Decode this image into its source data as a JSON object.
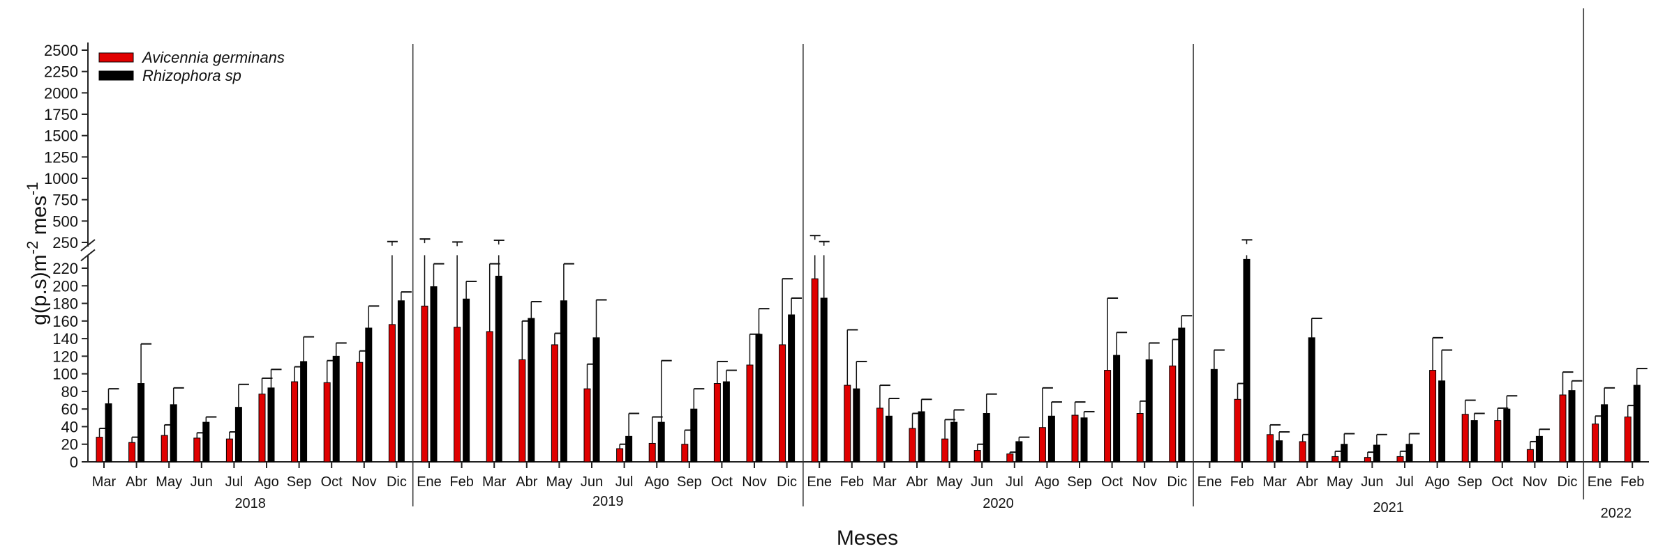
{
  "chart_data": {
    "type": "bar",
    "title": "",
    "xlabel": "Meses",
    "ylabel": "g(p.s)m-2 mes-1",
    "ylabel_parts": {
      "base": "g(p.s)m",
      "exp1": "-2",
      "mid": " mes",
      "exp2": "-1"
    },
    "y_axis_break": {
      "lower_range": [
        0,
        230
      ],
      "upper_range": [
        250,
        2500
      ]
    },
    "y_ticks_lower": [
      0,
      20,
      40,
      60,
      80,
      100,
      120,
      140,
      160,
      180,
      200,
      220
    ],
    "y_ticks_upper": [
      250,
      500,
      750,
      1000,
      1250,
      1500,
      1750,
      2000,
      2250,
      2500
    ],
    "legend_position": "top-left",
    "years": [
      {
        "label": "2018",
        "months": [
          "Mar",
          "Abr",
          "May",
          "Jun",
          "Jul",
          "Ago",
          "Sep",
          "Oct",
          "Nov",
          "Dic"
        ]
      },
      {
        "label": "2019",
        "months": [
          "Ene",
          "Feb",
          "Mar",
          "Abr",
          "May",
          "Jun",
          "Jul",
          "Ago",
          "Sep",
          "Oct",
          "Nov",
          "Dic"
        ]
      },
      {
        "label": "2020",
        "months": [
          "Ene",
          "Feb",
          "Mar",
          "Abr",
          "May",
          "Jun",
          "Jul",
          "Ago",
          "Sep",
          "Oct",
          "Nov",
          "Dic"
        ]
      },
      {
        "label": "2021",
        "months": [
          "Ene",
          "Feb",
          "Mar",
          "Abr",
          "May",
          "Jun",
          "Jul",
          "Ago",
          "Sep",
          "Oct",
          "Nov",
          "Dic"
        ]
      },
      {
        "label": "2022",
        "months": [
          "Ene",
          "Feb"
        ]
      }
    ],
    "series": [
      {
        "name": "Avicennia germinans",
        "color": "#e00000",
        "values": [
          28,
          22,
          30,
          27,
          26,
          77,
          91,
          90,
          113,
          156,
          177,
          153,
          148,
          116,
          133,
          83,
          15,
          21,
          20,
          89,
          110,
          133,
          208,
          87,
          61,
          38,
          26,
          13,
          9,
          39,
          53,
          104,
          55,
          109,
          0,
          71,
          31,
          23,
          6,
          5,
          6,
          104,
          54,
          47,
          14,
          76,
          43,
          51
        ],
        "error_upper": [
          38,
          28,
          42,
          33,
          34,
          95,
          108,
          115,
          126,
          260,
          290,
          255,
          225,
          160,
          146,
          111,
          20,
          51,
          36,
          114,
          145,
          208,
          330,
          150,
          87,
          55,
          48,
          20,
          11,
          84,
          68,
          186,
          69,
          139,
          0,
          89,
          42,
          31,
          12,
          11,
          12,
          141,
          70,
          61,
          23,
          102,
          52,
          64
        ]
      },
      {
        "name": "Rhizophora sp",
        "color": "#000000",
        "values": [
          66,
          89,
          65,
          45,
          62,
          84,
          114,
          120,
          152,
          183,
          199,
          185,
          211,
          163,
          183,
          141,
          29,
          45,
          60,
          91,
          145,
          167,
          186,
          83,
          52,
          57,
          45,
          55,
          23,
          52,
          50,
          121,
          116,
          152,
          105,
          230,
          24,
          141,
          20,
          19,
          20,
          92,
          47,
          60,
          29,
          81,
          65,
          87
        ],
        "error_upper": [
          83,
          134,
          84,
          51,
          88,
          105,
          142,
          135,
          177,
          193,
          225,
          205,
          275,
          182,
          225,
          184,
          55,
          115,
          83,
          104,
          174,
          186,
          260,
          114,
          72,
          71,
          59,
          77,
          28,
          68,
          57,
          147,
          135,
          166,
          127,
          280,
          34,
          163,
          32,
          31,
          32,
          127,
          55,
          75,
          37,
          92,
          84,
          106
        ]
      }
    ]
  }
}
